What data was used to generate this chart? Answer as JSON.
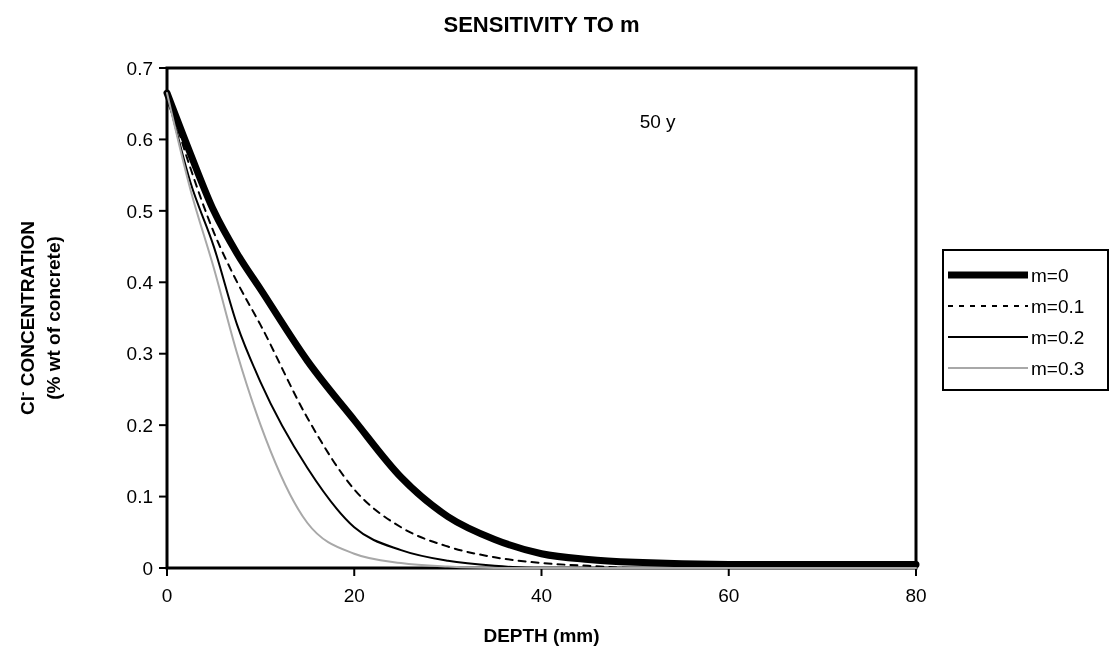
{
  "chart_data": {
    "type": "line",
    "title": "SENSITIVITY TO m",
    "xlabel": "DEPTH (mm)",
    "ylabel": "Cl$^{-}$ CONCENTRATION\n(% wt of concrete)",
    "x": [
      0,
      2.5,
      5,
      7.5,
      10,
      15,
      20,
      25,
      30,
      35,
      40,
      45,
      50,
      60,
      70,
      80
    ],
    "series": [
      {
        "name": "m=0",
        "color": "#000000",
        "line_style": "solid",
        "values": [
          0.665,
          0.58,
          0.5,
          0.44,
          0.39,
          0.29,
          0.207,
          0.127,
          0.072,
          0.04,
          0.02,
          0.012,
          0.008,
          0.005,
          0.005,
          0.005
        ]
      },
      {
        "name": "m=0.1",
        "color": "#000000",
        "line_style": "dashed",
        "values": [
          0.665,
          0.56,
          0.47,
          0.4,
          0.34,
          0.21,
          0.11,
          0.057,
          0.03,
          0.015,
          0.007,
          0.003,
          0,
          0,
          0,
          0
        ]
      },
      {
        "name": "m=0.2",
        "color": "#000000",
        "line_style": "solid",
        "values": [
          0.665,
          0.54,
          0.45,
          0.34,
          0.26,
          0.14,
          0.057,
          0.025,
          0.01,
          0.003,
          0,
          0,
          0,
          0,
          0,
          0
        ]
      },
      {
        "name": "m=0.3",
        "color": "#a8a8a8",
        "line_style": "solid",
        "values": [
          0.665,
          0.53,
          0.42,
          0.3,
          0.2,
          0.063,
          0.02,
          0.007,
          0.002,
          0,
          0,
          0,
          0,
          0,
          0,
          0
        ]
      }
    ],
    "xlim": [
      0,
      80
    ],
    "xticks": [
      0,
      20,
      40,
      60,
      80
    ],
    "ylim": [
      0,
      0.7
    ],
    "yticks": [
      0,
      0.1,
      0.2,
      0.3,
      0.4,
      0.5,
      0.6,
      0.7
    ],
    "annotations": [
      "50 y"
    ],
    "legend": "right",
    "grid": false
  }
}
